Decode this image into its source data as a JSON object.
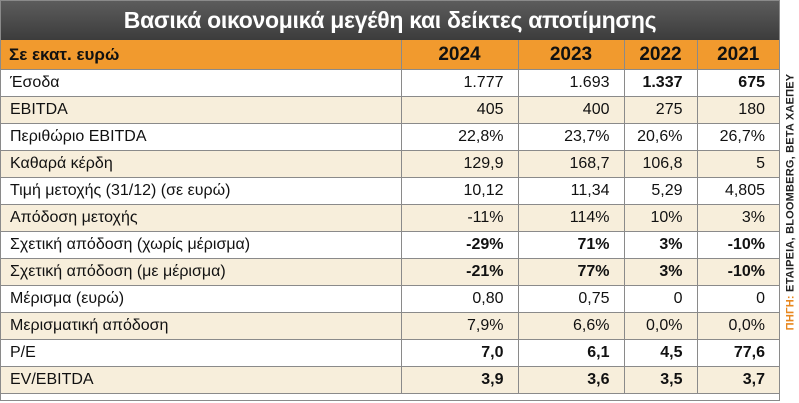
{
  "title": "Βασικά οικονομικά μεγέθη και δείκτες αποτίμησης",
  "header": {
    "label": "Σε εκατ. ευρώ",
    "years": [
      "2024",
      "2023",
      "2022",
      "2021"
    ]
  },
  "rows": [
    {
      "label": "Έσοδα",
      "values": [
        "1.777",
        "1.693",
        "1.337",
        "675"
      ]
    },
    {
      "label": "EBITDA",
      "values": [
        "405",
        "400",
        "275",
        "180"
      ]
    },
    {
      "label": "Περιθώριο EBITDA",
      "values": [
        "22,8%",
        "23,7%",
        "20,6%",
        "26,7%"
      ]
    },
    {
      "label": "Καθαρά κέρδη",
      "values": [
        "129,9",
        "168,7",
        "106,8",
        "5"
      ]
    },
    {
      "label": "Τιμή μετοχής (31/12) (σε ευρώ)",
      "values": [
        "10,12",
        "11,34",
        "5,29",
        "4,805"
      ]
    },
    {
      "label": "Απόδοση μετοχής",
      "values": [
        "-11%",
        "114%",
        "10%",
        "3%"
      ]
    },
    {
      "label": "Σχετική απόδοση (χωρίς μέρισμα)",
      "values": [
        "-29%",
        "71%",
        "3%",
        "-10%"
      ]
    },
    {
      "label": "Σχετική απόδοση (με μέρισμα)",
      "values": [
        "-21%",
        "77%",
        "3%",
        "-10%"
      ]
    },
    {
      "label": "Μέρισμα (ευρώ)",
      "values": [
        "0,80",
        "0,75",
        "0",
        "0"
      ]
    },
    {
      "label": "Μερισματική απόδοση",
      "values": [
        "7,9%",
        "6,6%",
        "0,0%",
        "0,0%"
      ]
    },
    {
      "label": "P/E",
      "values": [
        "7,0",
        "6,1",
        "4,5",
        "77,6"
      ]
    },
    {
      "label": "EV/EBITDA",
      "values": [
        "3,9",
        "3,6",
        "3,5",
        "3,7"
      ]
    }
  ],
  "source": {
    "key": "ΠΗΓΗ:",
    "text": "ΕΤΑΙΡΕΙΑ, BLOOMBERG, BETA ΧΑΕΠΕΥ"
  },
  "colors": {
    "header_orange": "#f19a2e",
    "stripe": "#f7eedb",
    "title_bg": "#4a4a4a"
  }
}
